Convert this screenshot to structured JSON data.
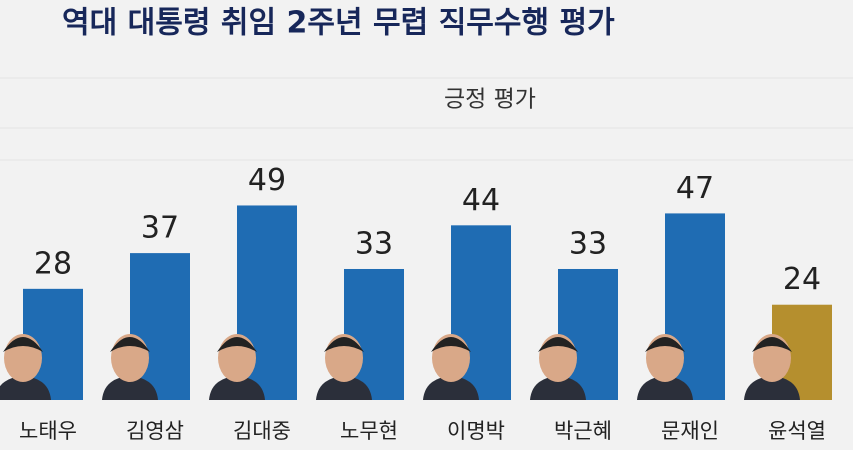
{
  "chart_data": {
    "type": "bar",
    "title": "역대 대통령 취임 2주년 무렵 직무수행 평가",
    "subtitle": "긍정 평가",
    "categories": [
      "노태우",
      "김영삼",
      "김대중",
      "노무현",
      "이명박",
      "박근혜",
      "문재인",
      "윤석열"
    ],
    "values": [
      28,
      37,
      49,
      33,
      44,
      33,
      47,
      24
    ],
    "colors": [
      "#1f6cb3",
      "#1f6cb3",
      "#1f6cb3",
      "#1f6cb3",
      "#1f6cb3",
      "#1f6cb3",
      "#1f6cb3",
      "#b58f2e"
    ]
  }
}
